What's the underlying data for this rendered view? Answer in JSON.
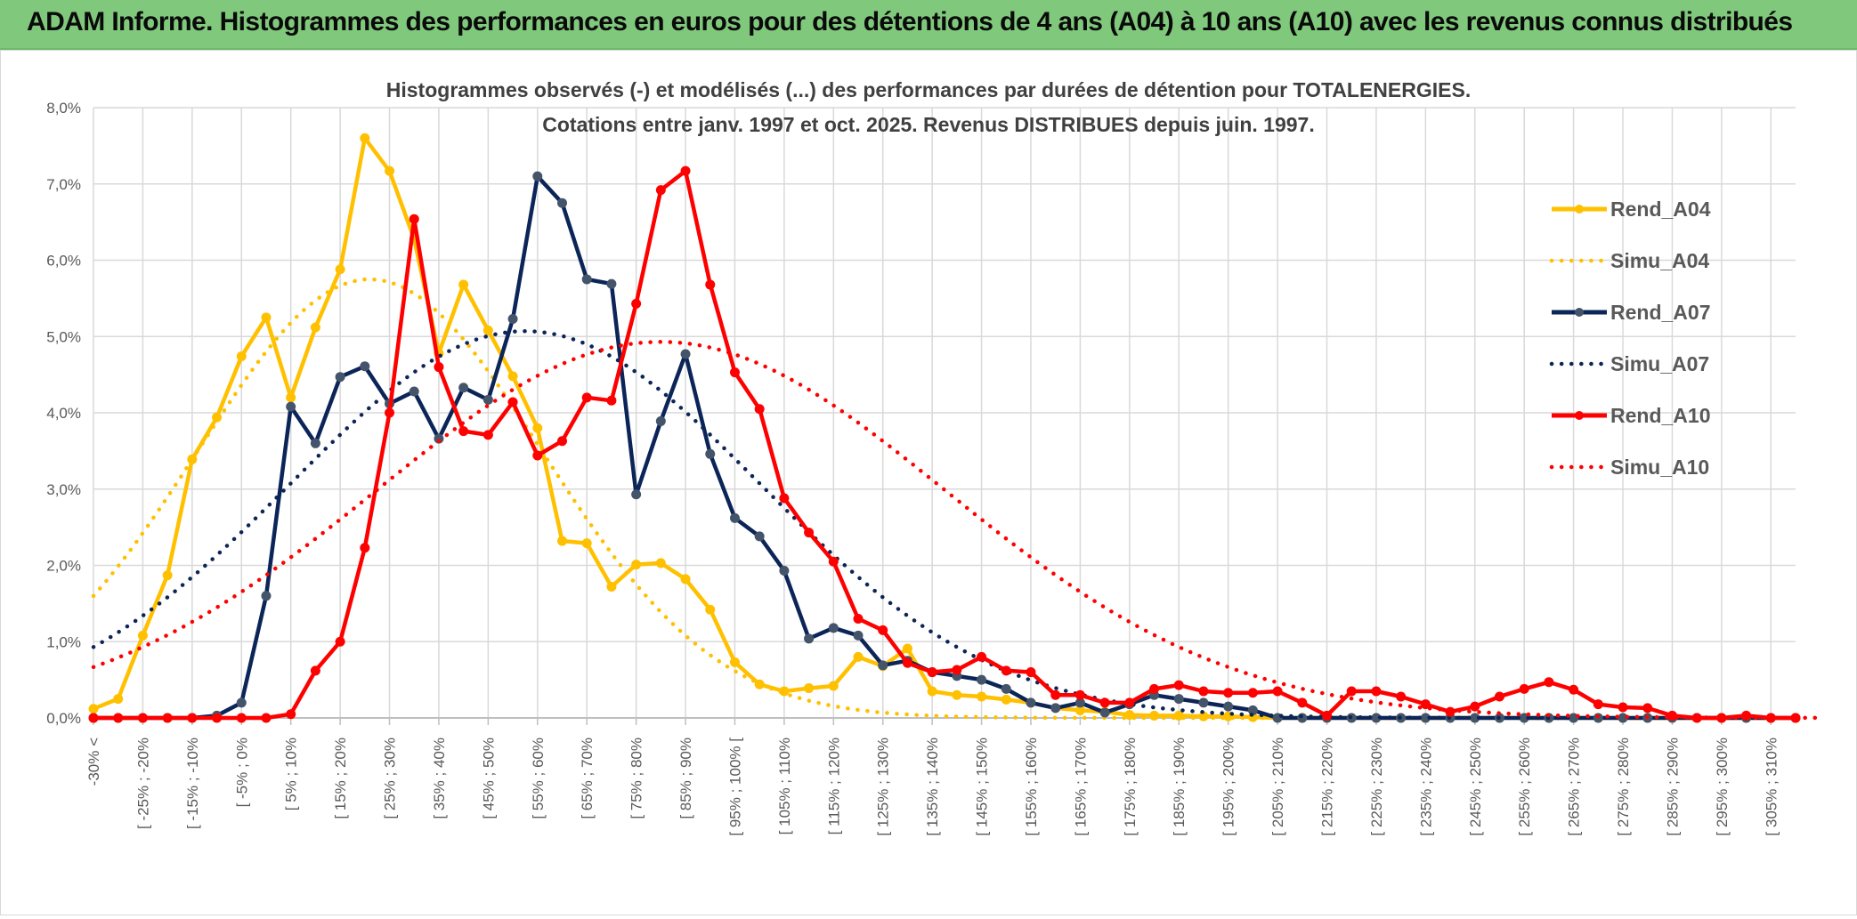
{
  "banner": {
    "title": "ADAM Informe. Histogrammes des performances en euros pour des détentions de 4 ans (A04) à 10 ans (A10) avec les revenus connus distribués"
  },
  "colors": {
    "banner_bg": "#80c97c",
    "a04": "#ffc000",
    "a07": "#0c2558",
    "a07_marker": "#44546a",
    "a10": "#ff0000",
    "grid": "#d9d9d9"
  },
  "chart_data": {
    "type": "line",
    "title_lines": [
      "Histogrammes observés (-) et modélisés (...) des performances par durées de détention pour TOTALENERGIES.",
      "Cotations entre janv. 1997 et oct. 2025. Revenus DISTRIBUES depuis juin. 1997."
    ],
    "y_ticks": [
      "0,0%",
      "1,0%",
      "2,0%",
      "3,0%",
      "4,0%",
      "5,0%",
      "6,0%",
      "7,0%",
      "8,0%"
    ],
    "ylim": [
      0,
      8
    ],
    "y_unit": "%",
    "x_labels": [
      "-30% <",
      "[ -25% ; -20%",
      "[ -15% ; -10%",
      "[ -5% ; 0%",
      "[ 5% ; 10%",
      "[ 15% ; 20%",
      "[ 25% ; 30%",
      "[ 35% ; 40%",
      "[ 45% ; 50%",
      "[ 55% ; 60%",
      "[ 65% ; 70%",
      "[ 75% ; 80%",
      "[ 85% ; 90%",
      "[ 95% ; 100% [",
      "[ 105% ; 110%",
      "[ 115% ; 120%",
      "[ 125% ; 130%",
      "[ 135% ; 140%",
      "[ 145% ; 150%",
      "[ 155% ; 160%",
      "[ 165% ; 170%",
      "[ 175% ; 180%",
      "[ 185% ; 190%",
      "[ 195% ; 200%",
      "[ 205% ; 210%",
      "[ 215% ; 220%",
      "[ 225% ; 230%",
      "[ 235% ; 240%",
      "[ 245% ; 250%",
      "[ 255% ; 260%",
      "[ 265% ; 270%",
      "[ 275% ; 280%",
      "[ 285% ; 290%",
      "[ 295% ; 300%",
      "[ 305% ; 310%"
    ],
    "n_bins": 70,
    "series": [
      {
        "name": "Rend_A04",
        "style": "solid",
        "color": "#ffc000",
        "marker_color": "#ffc000",
        "values": [
          0.12,
          0.25,
          1.08,
          1.87,
          3.39,
          3.94,
          4.74,
          5.25,
          4.2,
          5.12,
          5.88,
          7.6,
          7.17,
          6.28,
          4.78,
          5.68,
          5.08,
          4.48,
          3.8,
          2.32,
          2.29,
          1.72,
          2.01,
          2.03,
          1.82,
          1.42,
          0.73,
          0.44,
          0.35,
          0.39,
          0.42,
          0.8,
          0.68,
          0.91,
          0.35,
          0.3,
          0.28,
          0.24,
          0.2,
          0.13,
          0.1,
          0.08,
          0.04,
          0.03,
          0.03,
          0.02,
          0.02,
          0.01,
          0.0,
          0.0,
          0.0,
          0.0,
          0.0,
          0.0,
          0.0,
          0.0,
          0.0,
          0.0,
          0.0,
          0.0,
          0.0,
          0.0,
          0.0,
          0.0,
          0.0,
          0.0,
          0.0,
          0.0,
          0.0,
          0.0
        ]
      },
      {
        "name": "Simu_A04",
        "style": "dotted",
        "color": "#ffc000",
        "mu": 11.2,
        "sigma": 7.0,
        "peak": 5.75,
        "xmax": 48
      },
      {
        "name": "Rend_A07",
        "style": "solid",
        "color": "#0c2558",
        "marker_color": "#44546a",
        "values": [
          0.0,
          0.0,
          0.0,
          0.0,
          0.0,
          0.03,
          0.2,
          1.6,
          4.08,
          3.6,
          4.47,
          4.61,
          4.12,
          4.28,
          3.66,
          4.33,
          4.17,
          5.23,
          7.1,
          6.75,
          5.75,
          5.69,
          2.93,
          3.89,
          4.77,
          3.46,
          2.62,
          2.38,
          1.93,
          1.04,
          1.18,
          1.08,
          0.69,
          0.75,
          0.6,
          0.55,
          0.5,
          0.38,
          0.2,
          0.13,
          0.2,
          0.07,
          0.18,
          0.3,
          0.25,
          0.2,
          0.15,
          0.1,
          0.0,
          0.0,
          0.0,
          0.0,
          0.0,
          0.0,
          0.0,
          0.0,
          0.0,
          0.0,
          0.0,
          0.0,
          0.0,
          0.0,
          0.0,
          0.0,
          0.0,
          0.0,
          0.0,
          0.0,
          0.0,
          0.0
        ]
      },
      {
        "name": "Simu_A07",
        "style": "dotted",
        "color": "#0c2558",
        "mu": 17.5,
        "sigma": 9.5,
        "peak": 5.07,
        "xmax": 60
      },
      {
        "name": "Rend_A10",
        "style": "solid",
        "color": "#ff0000",
        "marker_color": "#ff0000",
        "values": [
          0.0,
          0.0,
          0.0,
          0.0,
          0.0,
          0.0,
          0.0,
          0.0,
          0.05,
          0.62,
          1.0,
          2.23,
          4.0,
          6.54,
          4.6,
          3.76,
          3.71,
          4.14,
          3.44,
          3.63,
          4.2,
          4.16,
          5.43,
          6.92,
          7.17,
          5.68,
          4.53,
          4.05,
          2.88,
          2.43,
          2.05,
          1.3,
          1.15,
          0.72,
          0.6,
          0.63,
          0.8,
          0.62,
          0.6,
          0.3,
          0.3,
          0.2,
          0.2,
          0.38,
          0.43,
          0.35,
          0.33,
          0.33,
          0.35,
          0.2,
          0.03,
          0.35,
          0.35,
          0.28,
          0.18,
          0.08,
          0.15,
          0.28,
          0.38,
          0.47,
          0.37,
          0.18,
          0.14,
          0.13,
          0.03,
          0.0,
          0.0,
          0.03,
          0.0,
          0.0
        ]
      },
      {
        "name": "Simu_A10",
        "style": "dotted",
        "color": "#ff0000",
        "mu": 23.0,
        "sigma": 11.5,
        "peak": 4.93,
        "xmax": 70
      }
    ],
    "legend": [
      "Rend_A04",
      "Simu_A04",
      "Rend_A07",
      "Simu_A07",
      "Rend_A10",
      "Simu_A10"
    ],
    "legend_position": "right"
  }
}
